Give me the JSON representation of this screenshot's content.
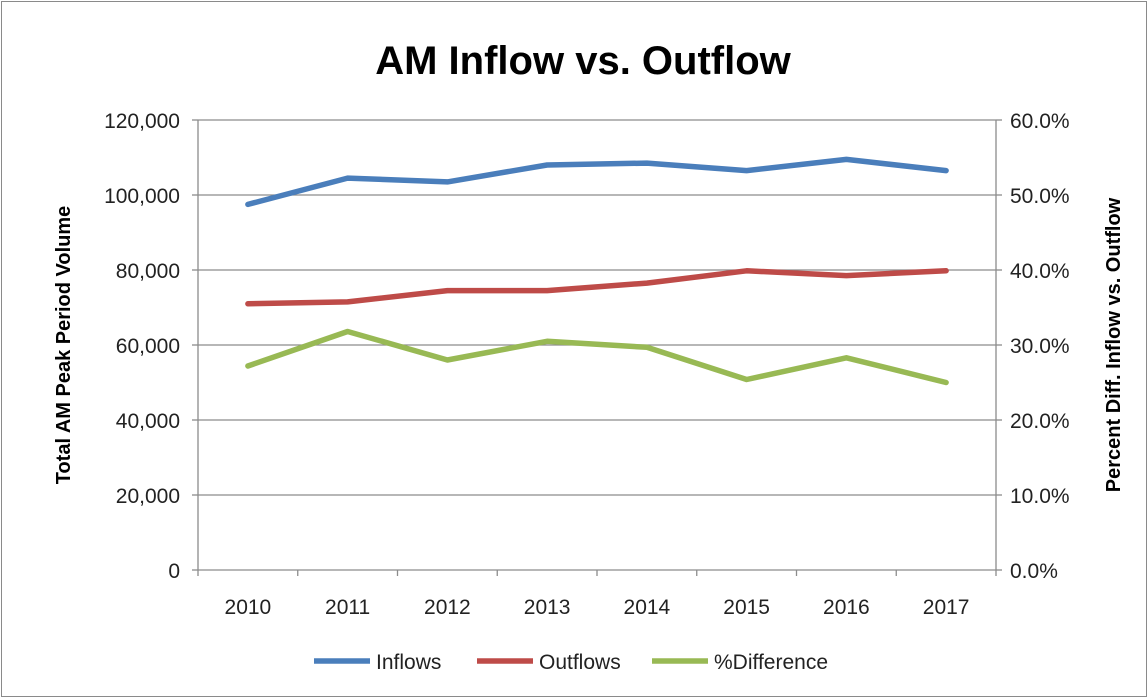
{
  "chart_data": {
    "type": "line",
    "title": "AM Inflow vs. Outflow",
    "categories": [
      "2010",
      "2011",
      "2012",
      "2013",
      "2014",
      "2015",
      "2016",
      "2017"
    ],
    "y_left": {
      "label": "Total AM Peak Period Volume",
      "ylim": [
        0,
        120000
      ],
      "ticks": [
        0,
        20000,
        40000,
        60000,
        80000,
        100000,
        120000
      ],
      "tick_labels": [
        "0",
        "20,000",
        "40,000",
        "60,000",
        "80,000",
        "100,000",
        "120,000"
      ]
    },
    "y_right": {
      "label": "Percent Diff. Inflow vs. Outflow",
      "ylim": [
        0,
        60
      ],
      "ticks": [
        0,
        10,
        20,
        30,
        40,
        50,
        60
      ],
      "tick_labels": [
        "0.0%",
        "10.0%",
        "20.0%",
        "30.0%",
        "40.0%",
        "50.0%",
        "60.0%"
      ]
    },
    "series": [
      {
        "name": "Inflows",
        "axis": "left",
        "color": "#4a7ebb",
        "values": [
          97500,
          104500,
          103500,
          108000,
          108500,
          106500,
          109500,
          106500
        ]
      },
      {
        "name": "Outflows",
        "axis": "left",
        "color": "#be4b48",
        "values": [
          71000,
          71500,
          74500,
          74500,
          76500,
          79800,
          78500,
          79800
        ]
      },
      {
        "name": "%Difference",
        "axis": "right",
        "color": "#98b954",
        "values": [
          27.2,
          31.8,
          28.0,
          30.5,
          29.7,
          25.4,
          28.3,
          25.0
        ]
      }
    ],
    "grid": true,
    "legend_position": "bottom"
  }
}
